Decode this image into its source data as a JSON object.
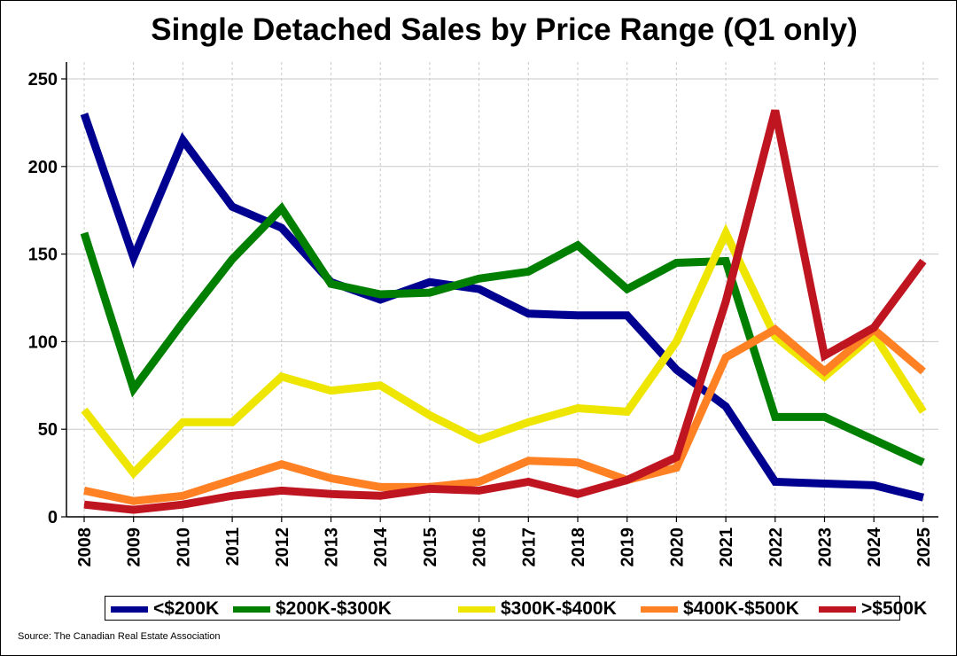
{
  "chart_data": {
    "type": "line",
    "title": "Single Detached Sales by Price Range (Q1 only)",
    "xlabel": "",
    "ylabel": "",
    "ylim": [
      0,
      250
    ],
    "yticks": [
      0,
      50,
      100,
      150,
      200,
      250
    ],
    "x": [
      "2008",
      "2009",
      "2010",
      "2011",
      "2012",
      "2013",
      "2014",
      "2015",
      "2016",
      "2017",
      "2018",
      "2019",
      "2020",
      "2021",
      "2022",
      "2023",
      "2024",
      "2025"
    ],
    "grid": true,
    "legend_position": "bottom",
    "series": [
      {
        "name": "<$200K",
        "color": "#000090",
        "values": [
          230,
          148,
          215,
          177,
          165,
          134,
          124,
          134,
          130,
          116,
          115,
          115,
          84,
          63,
          20,
          19,
          18,
          11
        ]
      },
      {
        "name": "$200K-$300K",
        "color": "#007F00",
        "values": [
          162,
          73,
          111,
          147,
          176,
          133,
          127,
          128,
          136,
          140,
          155,
          130,
          145,
          146,
          57,
          57,
          44,
          31
        ]
      },
      {
        "name": "$300K-$400K",
        "color": "#EEE600",
        "values": [
          61,
          25,
          54,
          54,
          80,
          72,
          75,
          58,
          44,
          54,
          62,
          60,
          100,
          162,
          103,
          80,
          104,
          60
        ]
      },
      {
        "name": "$400K-$500K",
        "color": "#FF8124",
        "values": [
          15,
          9,
          12,
          21,
          30,
          22,
          17,
          17,
          20,
          32,
          31,
          21,
          28,
          91,
          107,
          83,
          107,
          83
        ]
      },
      {
        "name": ">$500K",
        "color": "#BF1520",
        "values": [
          7,
          4,
          7,
          12,
          15,
          13,
          12,
          16,
          15,
          20,
          13,
          21,
          34,
          123,
          232,
          92,
          108,
          146
        ]
      }
    ],
    "source": "Source: The Canadian Real Estate Association"
  }
}
